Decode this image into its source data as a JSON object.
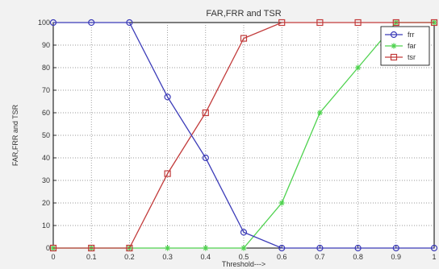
{
  "chart_data": {
    "type": "line",
    "title": "FAR,FRR and TSR",
    "xlabel": "Threshold--->",
    "ylabel": "FAR,FRR and TSR",
    "x": [
      0,
      0.1,
      0.2,
      0.3,
      0.4,
      0.5,
      0.6,
      0.7,
      0.8,
      0.9,
      1
    ],
    "xlim": [
      0,
      1
    ],
    "ylim": [
      0,
      100
    ],
    "x_ticks": [
      "0",
      "0.1",
      "0.2",
      "0.3",
      "0.4",
      "0.5",
      "0.6",
      "0.7",
      "0.8",
      "0.9",
      "1"
    ],
    "y_ticks": [
      "0",
      "10",
      "20",
      "30",
      "40",
      "50",
      "60",
      "70",
      "80",
      "90",
      "100"
    ],
    "grid": true,
    "legend_position": "top-right",
    "series": [
      {
        "name": "frr",
        "color": "#3b3bb8",
        "marker": "circle",
        "values": [
          100,
          100,
          100,
          67,
          40,
          7,
          0,
          0,
          0,
          0,
          0
        ]
      },
      {
        "name": "far",
        "color": "#4fd24f",
        "marker": "star",
        "values": [
          0,
          0,
          0,
          0,
          0,
          0,
          20,
          60,
          80,
          100,
          100
        ]
      },
      {
        "name": "tsr",
        "color": "#c23b3b",
        "marker": "square",
        "values": [
          0,
          0,
          0,
          33,
          60,
          93,
          100,
          100,
          100,
          100,
          100
        ]
      }
    ]
  }
}
